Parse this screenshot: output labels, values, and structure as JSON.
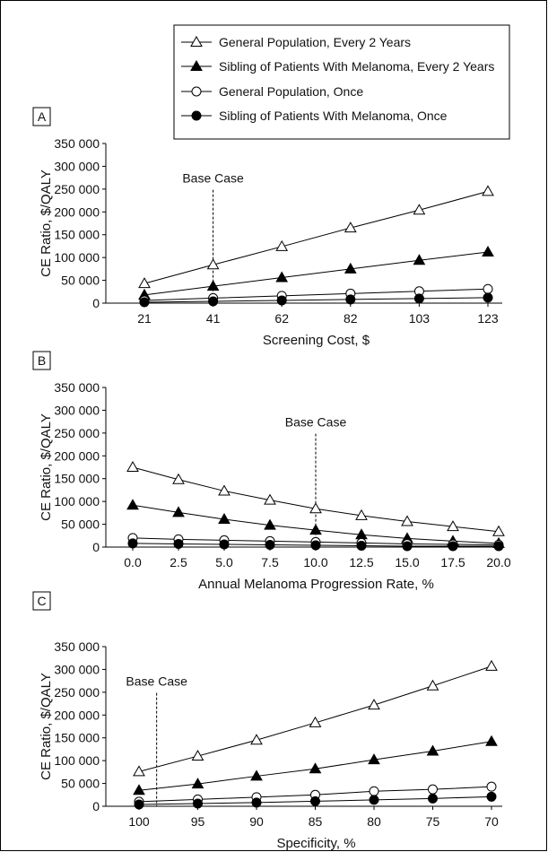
{
  "legend": {
    "entries": [
      {
        "label": "General Population, Every 2 Years",
        "marker": "open-triangle"
      },
      {
        "label": "Sibling of Patients With Melanoma, Every 2 Years",
        "marker": "filled-triangle"
      },
      {
        "label": "General Population, Once",
        "marker": "open-circle"
      },
      {
        "label": "Sibling of Patients With Melanoma, Once",
        "marker": "filled-circle"
      }
    ],
    "placement": "top-right"
  },
  "chart_data": [
    {
      "panel": "A",
      "type": "line",
      "ylabel": "CE Ratio, $/QALY",
      "xlabel": "Screening Cost, $",
      "ylim": [
        0,
        350000
      ],
      "yticks": [
        "350 000",
        "300 000",
        "250 000",
        "200 000",
        "150 000",
        "100 000",
        "50 000",
        "0"
      ],
      "categories": [
        "21",
        "41",
        "62",
        "82",
        "103",
        "123"
      ],
      "annotation": "Base Case",
      "base_case_index": 1,
      "series": [
        {
          "name": "General Population, Every 2 Years",
          "values": [
            43000,
            84000,
            124000,
            165000,
            204000,
            245000
          ]
        },
        {
          "name": "Sibling of Patients With Melanoma, Every 2 Years",
          "values": [
            18000,
            37000,
            56000,
            75000,
            94000,
            112000
          ]
        },
        {
          "name": "General Population, Once",
          "values": [
            6000,
            11000,
            16000,
            21000,
            26000,
            31000
          ]
        },
        {
          "name": "Sibling of Patients With Melanoma, Once",
          "values": [
            2000,
            4000,
            6000,
            8000,
            10000,
            12000
          ]
        }
      ]
    },
    {
      "panel": "B",
      "type": "line",
      "ylabel": "CE Ratio, $/QALY",
      "xlabel": "Annual Melanoma Progression Rate, %",
      "ylim": [
        0,
        350000
      ],
      "yticks": [
        "350 000",
        "300 000",
        "250 000",
        "200 000",
        "150 000",
        "100 000",
        "50 000",
        "0"
      ],
      "categories": [
        "0.0",
        "2.5",
        "5.0",
        "7.5",
        "10.0",
        "12.5",
        "15.0",
        "17.5",
        "20.0"
      ],
      "annotation": "Base Case",
      "base_case_index": 4,
      "series": [
        {
          "name": "General Population, Every 2 Years",
          "values": [
            175000,
            148000,
            123000,
            103000,
            84000,
            69000,
            56000,
            45000,
            34000
          ]
        },
        {
          "name": "Sibling of Patients With Melanoma, Every 2 Years",
          "values": [
            92000,
            76000,
            61000,
            48000,
            37000,
            27000,
            19000,
            13000,
            8000
          ]
        },
        {
          "name": "General Population, Once",
          "values": [
            20000,
            17000,
            15000,
            13000,
            11000,
            9000,
            7000,
            6000,
            5000
          ]
        },
        {
          "name": "Sibling of Patients With Melanoma, Once",
          "values": [
            8000,
            7000,
            6000,
            5000,
            4000,
            3000,
            2000,
            2000,
            2000
          ]
        }
      ]
    },
    {
      "panel": "C",
      "type": "line",
      "ylabel": "CE Ratio, $/QALY",
      "xlabel": "Specificity, %",
      "ylim": [
        0,
        350000
      ],
      "yticks": [
        "350 000",
        "300 000",
        "250 000",
        "200 000",
        "150 000",
        "100 000",
        "50 000",
        "0"
      ],
      "categories": [
        "100",
        "95",
        "90",
        "85",
        "80",
        "75",
        "70"
      ],
      "annotation": "Base Case",
      "base_case_position": 0.3,
      "series": [
        {
          "name": "General Population, Every 2 Years",
          "values": [
            76000,
            110000,
            145000,
            183000,
            222000,
            264000,
            307000
          ]
        },
        {
          "name": "Sibling of Patients With Melanoma, Every 2 Years",
          "values": [
            35000,
            49000,
            66000,
            82000,
            102000,
            121000,
            142000
          ]
        },
        {
          "name": "General Population, Once",
          "values": [
            10000,
            15000,
            20000,
            25000,
            33000,
            37000,
            43000
          ]
        },
        {
          "name": "Sibling of Patients With Melanoma, Once",
          "values": [
            4000,
            6000,
            8000,
            11000,
            14000,
            17000,
            21000
          ]
        }
      ]
    }
  ]
}
